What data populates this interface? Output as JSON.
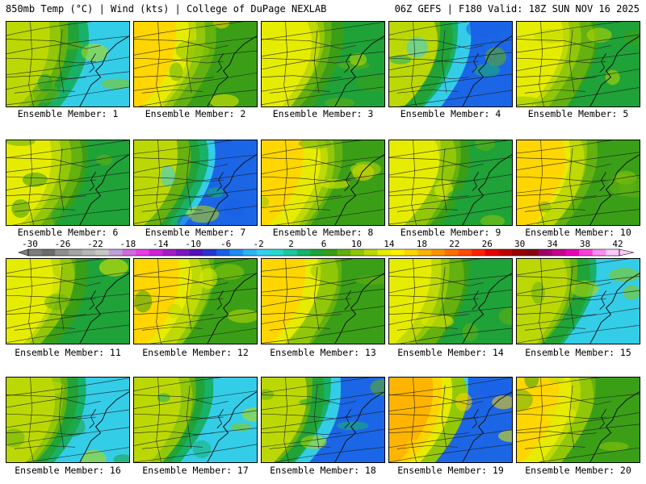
{
  "header": {
    "left": "850mb Temp (°C) | Wind (kts) | College of DuPage NEXLAB",
    "right": "06Z GEFS | F180 Valid: 18Z SUN NOV 16 2025"
  },
  "caption_prefix": "Ensemble Member:",
  "members": [
    {
      "label": "Ensemble Member: 1",
      "palette": "cool"
    },
    {
      "label": "Ensemble Member: 2",
      "palette": "warm"
    },
    {
      "label": "Ensemble Member: 3",
      "palette": "mid"
    },
    {
      "label": "Ensemble Member: 4",
      "palette": "cold"
    },
    {
      "label": "Ensemble Member: 5",
      "palette": "mid"
    },
    {
      "label": "Ensemble Member: 6",
      "palette": "mid"
    },
    {
      "label": "Ensemble Member: 7",
      "palette": "cold"
    },
    {
      "label": "Ensemble Member: 8",
      "palette": "warm"
    },
    {
      "label": "Ensemble Member: 9",
      "palette": "mid"
    },
    {
      "label": "Ensemble Member: 10",
      "palette": "warm"
    },
    {
      "label": "Ensemble Member: 11",
      "palette": "mid"
    },
    {
      "label": "Ensemble Member: 12",
      "palette": "warm"
    },
    {
      "label": "Ensemble Member: 13",
      "palette": "warm"
    },
    {
      "label": "Ensemble Member: 14",
      "palette": "mid"
    },
    {
      "label": "Ensemble Member: 15",
      "palette": "cool"
    },
    {
      "label": "Ensemble Member: 16",
      "palette": "cool"
    },
    {
      "label": "Ensemble Member: 17",
      "palette": "cool"
    },
    {
      "label": "Ensemble Member: 18",
      "palette": "cold"
    },
    {
      "label": "Ensemble Member: 19",
      "palette": "hot"
    },
    {
      "label": "Ensemble Member: 20",
      "palette": "warm"
    }
  ],
  "colorbar": {
    "tick_labels": [
      "-30",
      "-26",
      "-22",
      "-18",
      "-14",
      "-10",
      "-6",
      "-2",
      "2",
      "6",
      "10",
      "14",
      "18",
      "22",
      "26",
      "30",
      "34",
      "38",
      "42"
    ],
    "colors": [
      "#7e7e7e",
      "#6c6c6c",
      "#8f8f8f",
      "#a4a4a4",
      "#b6b6b6",
      "#c7c7c7",
      "#bfa0d8",
      "#d26adc",
      "#ea3ce6",
      "#cc22d6",
      "#a31cc8",
      "#7a18c0",
      "#5212b8",
      "#2a34cc",
      "#1a60e6",
      "#1e8cf0",
      "#2cb2f2",
      "#36cfef",
      "#29d6cc",
      "#1ec7a0",
      "#18b26c",
      "#1ea23a",
      "#389e18",
      "#62b010",
      "#8ec608",
      "#bcd804",
      "#e6ec00",
      "#fff000",
      "#ffd600",
      "#ffb400",
      "#ff9400",
      "#ff7000",
      "#ff4e00",
      "#ff2200",
      "#e80000",
      "#c00000",
      "#980000",
      "#880014",
      "#a0006a",
      "#c80092",
      "#e800b8",
      "#ff40d8",
      "#ff8cf0",
      "#ffc8fa"
    ]
  }
}
